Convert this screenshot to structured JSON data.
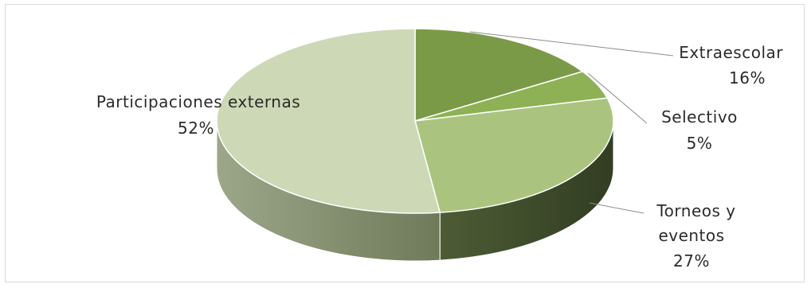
{
  "chart_data": {
    "type": "pie",
    "title": "",
    "slices": [
      {
        "label": "Extraescolar",
        "value": 16,
        "value_label": "16%",
        "color": "#7b9a47",
        "side_color": "#4e6530"
      },
      {
        "label": "Selectivo",
        "value": 5,
        "value_label": "5%",
        "color": "#8db154",
        "side_color": "#5a7336"
      },
      {
        "label": "Torneos y eventos",
        "label_lines": [
          "Torneos y",
          "eventos"
        ],
        "value": 27,
        "value_label": "27%",
        "color": "#aac47f",
        "side_color": "#3f4d2b"
      },
      {
        "label": "Participaciones externas",
        "value": 52,
        "value_label": "52%",
        "color": "#cdd8b6",
        "side_color": "#8f9a78"
      }
    ],
    "style": "3d-pie",
    "legend": "none, labels placed outside with leader lines"
  }
}
